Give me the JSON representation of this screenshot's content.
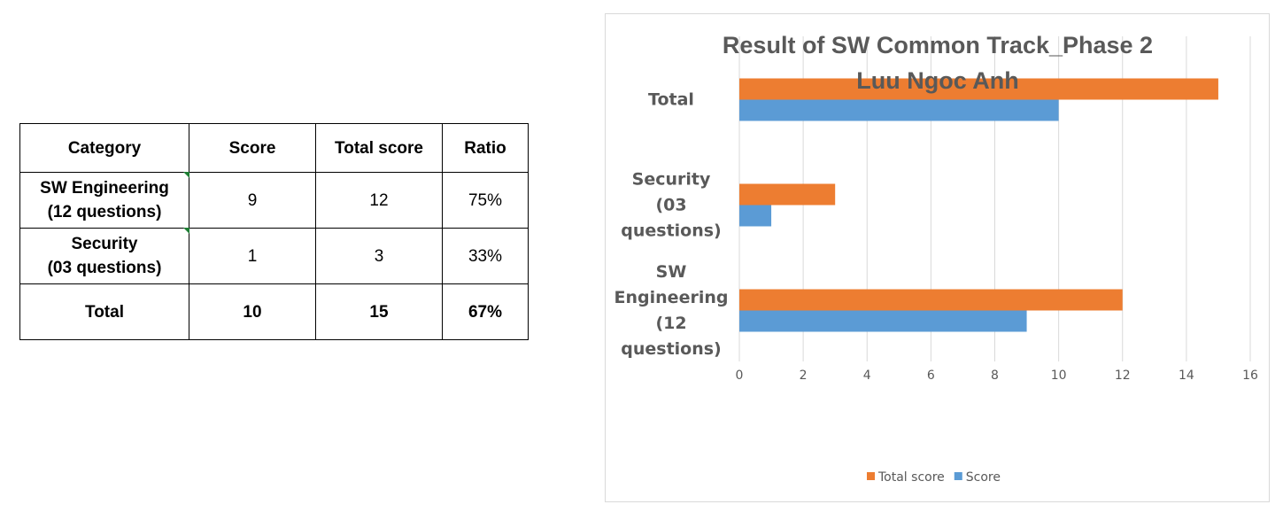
{
  "table": {
    "headers": [
      "Category",
      "Score",
      "Total score",
      "Ratio"
    ],
    "rows": [
      {
        "category_line1": "SW Engineering",
        "category_line2": "(12 questions)",
        "score": "9",
        "total": "12",
        "ratio": "75%"
      },
      {
        "category_line1": "Security",
        "category_line2": "(03 questions)",
        "score": "1",
        "total": "3",
        "ratio": "33%"
      }
    ],
    "total_row": {
      "category": "Total",
      "score": "10",
      "total": "15",
      "ratio": "67%"
    }
  },
  "chart_data": {
    "type": "bar",
    "orientation": "horizontal",
    "title": [
      "Result of SW Common Track_Phase 2",
      "Luu Ngoc Anh"
    ],
    "categories": [
      [
        "Total"
      ],
      [
        "Security",
        "(03",
        "questions)"
      ],
      [
        "SW",
        "Engineering",
        "(12",
        "questions)"
      ]
    ],
    "series": [
      {
        "name": "Total score",
        "color": "#ED7D31",
        "values": [
          15,
          3,
          12
        ]
      },
      {
        "name": "Score",
        "color": "#5B9BD5",
        "values": [
          10,
          1,
          9
        ]
      }
    ],
    "xlim": [
      0,
      16
    ],
    "xticks": [
      0,
      2,
      4,
      6,
      8,
      10,
      12,
      14,
      16
    ],
    "grid": true,
    "legend": "bottom"
  }
}
